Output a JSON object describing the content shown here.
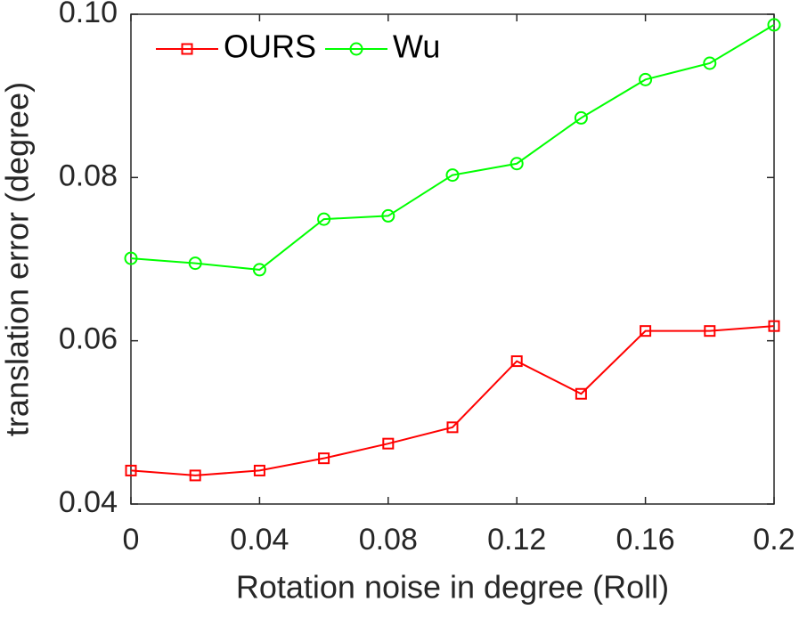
{
  "chart_data": {
    "type": "line",
    "x_label": "Rotation noise in degree (Roll)",
    "y_label": "translation error (degree)",
    "x": [
      0,
      0.02,
      0.04,
      0.06,
      0.08,
      0.1,
      0.12,
      0.14,
      0.16,
      0.18,
      0.2
    ],
    "series": [
      {
        "name": "OURS",
        "color": "#ff0000",
        "marker": "square",
        "values": [
          0.0441,
          0.0435,
          0.0441,
          0.0456,
          0.0474,
          0.0494,
          0.0575,
          0.0535,
          0.0612,
          0.0612,
          0.0618
        ]
      },
      {
        "name": "Wu",
        "color": "#00ff00",
        "marker": "circle",
        "values": [
          0.0701,
          0.0695,
          0.0687,
          0.0749,
          0.0753,
          0.0803,
          0.0817,
          0.0873,
          0.092,
          0.094,
          0.0987
        ]
      }
    ],
    "xlim": [
      0,
      0.2
    ],
    "ylim": [
      0.04,
      0.1
    ],
    "xticks": [
      0,
      0.04,
      0.08,
      0.12,
      0.16,
      0.2
    ],
    "yticks": [
      0.04,
      0.06,
      0.08,
      {
        "value": 0.1,
        "label": "0.10"
      }
    ],
    "legend": "top-left"
  }
}
